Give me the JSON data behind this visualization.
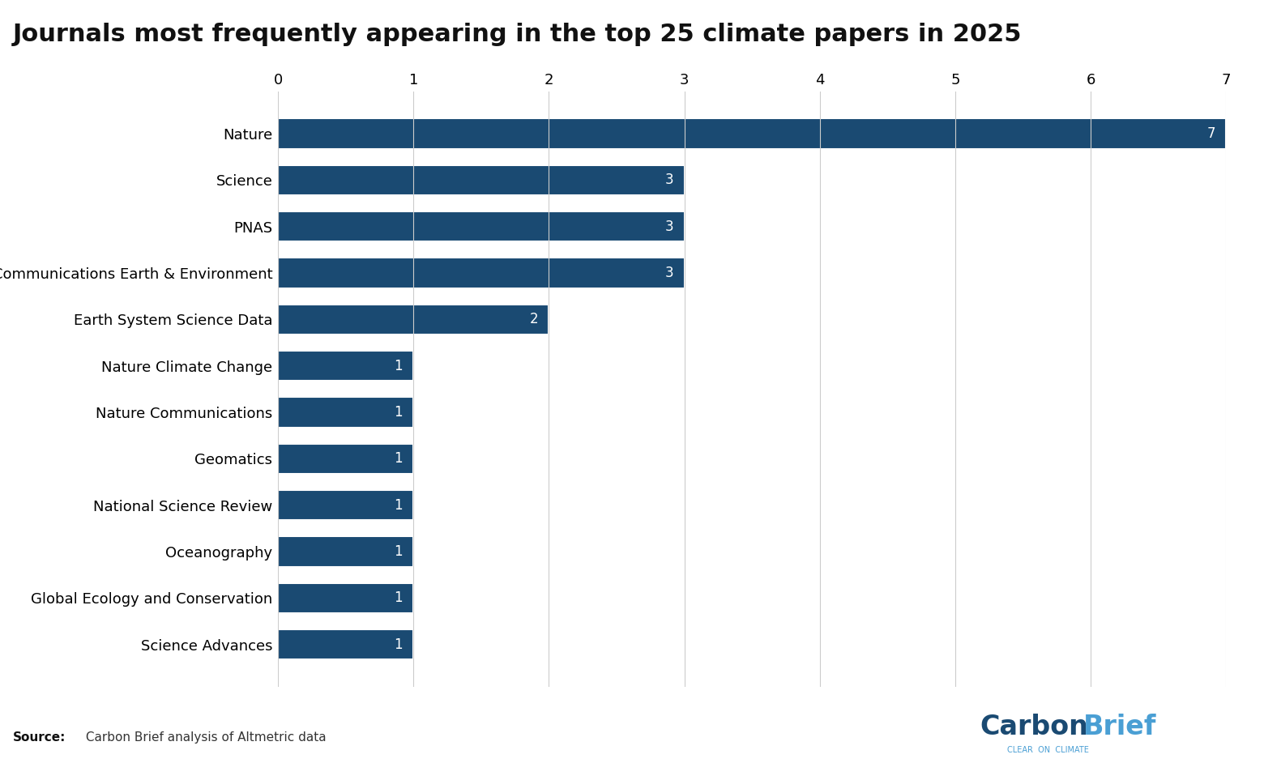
{
  "title": "Journals most frequently appearing in the top 25 climate papers in 2025",
  "categories": [
    "Science Advances",
    "Global Ecology and Conservation",
    "Oceanography",
    "National Science Review",
    "Geomatics",
    "Nature Communications",
    "Nature Climate Change",
    "Earth System Science Data",
    "Communications Earth & Environment",
    "PNAS",
    "Science",
    "Nature"
  ],
  "values": [
    1,
    1,
    1,
    1,
    1,
    1,
    1,
    2,
    3,
    3,
    3,
    7
  ],
  "bar_color": "#1a4a72",
  "xlim": [
    0,
    7
  ],
  "xticks": [
    0,
    1,
    2,
    3,
    4,
    5,
    6,
    7
  ],
  "source_label_bold": "Source:",
  "source_text_rest": " Carbon Brief analysis of Altmetric data",
  "background_color": "#ffffff",
  "title_fontsize": 22,
  "tick_fontsize": 13,
  "label_fontsize": 13,
  "value_label_fontsize": 12,
  "carbon_color": "#1a4a72",
  "brief_color": "#4a9fd4",
  "clear_on_climate": "CLEAR  ON  CLIMATE"
}
